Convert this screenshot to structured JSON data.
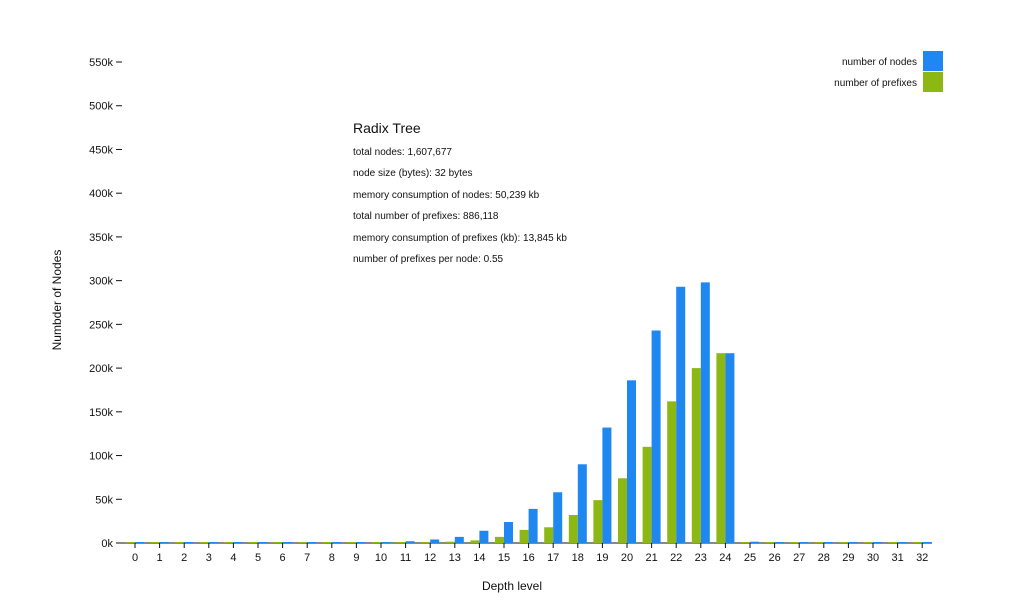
{
  "chart_data": {
    "type": "bar",
    "xlabel": "Depth level",
    "ylabel": "Numbder of Nodes",
    "ylim": [
      0,
      550000
    ],
    "yticks": [
      {
        "value": 0,
        "label": "0k"
      },
      {
        "value": 50000,
        "label": "50k"
      },
      {
        "value": 100000,
        "label": "100k"
      },
      {
        "value": 150000,
        "label": "150k"
      },
      {
        "value": 200000,
        "label": "200k"
      },
      {
        "value": 250000,
        "label": "250k"
      },
      {
        "value": 300000,
        "label": "300k"
      },
      {
        "value": 350000,
        "label": "350k"
      },
      {
        "value": 400000,
        "label": "400k"
      },
      {
        "value": 450000,
        "label": "450k"
      },
      {
        "value": 500000,
        "label": "500k"
      },
      {
        "value": 550000,
        "label": "550k"
      }
    ],
    "categories": [
      "0",
      "1",
      "2",
      "3",
      "4",
      "5",
      "6",
      "7",
      "8",
      "9",
      "10",
      "11",
      "12",
      "13",
      "14",
      "15",
      "16",
      "17",
      "18",
      "19",
      "20",
      "21",
      "22",
      "23",
      "24",
      "25",
      "26",
      "27",
      "28",
      "29",
      "30",
      "31",
      "32"
    ],
    "series": [
      {
        "name": "number of prefixes",
        "color": "#8db814",
        "values": [
          0,
          0,
          0,
          0,
          0,
          0,
          0,
          0,
          0,
          0,
          0,
          300,
          800,
          1500,
          3000,
          7000,
          15000,
          18000,
          32000,
          49000,
          74000,
          110000,
          162000,
          200000,
          217000,
          0,
          0,
          0,
          0,
          0,
          0,
          0,
          0
        ]
      },
      {
        "name": "number of nodes",
        "color": "#1f87f0",
        "values": [
          0,
          0,
          0,
          0,
          0,
          0,
          0,
          0,
          0,
          500,
          1000,
          2000,
          4000,
          7000,
          14000,
          24000,
          39000,
          58000,
          90000,
          132000,
          186000,
          243000,
          293000,
          298000,
          217000,
          1500,
          1000,
          1000,
          1000,
          800,
          800,
          500,
          400
        ]
      }
    ],
    "legend": {
      "position": "top-right",
      "order": [
        "number of nodes",
        "number of prefixes"
      ]
    },
    "annotation": {
      "title": "Radix Tree",
      "lines": [
        "total nodes: 1,607,677",
        "node size (bytes): 32 bytes",
        "memory consumption of nodes: 50,239 kb",
        "total number of prefixes: 886,118",
        "memory consumption of prefixes (kb): 13,845 kb",
        "number of prefixes per node: 0.55"
      ]
    },
    "grid": false
  }
}
